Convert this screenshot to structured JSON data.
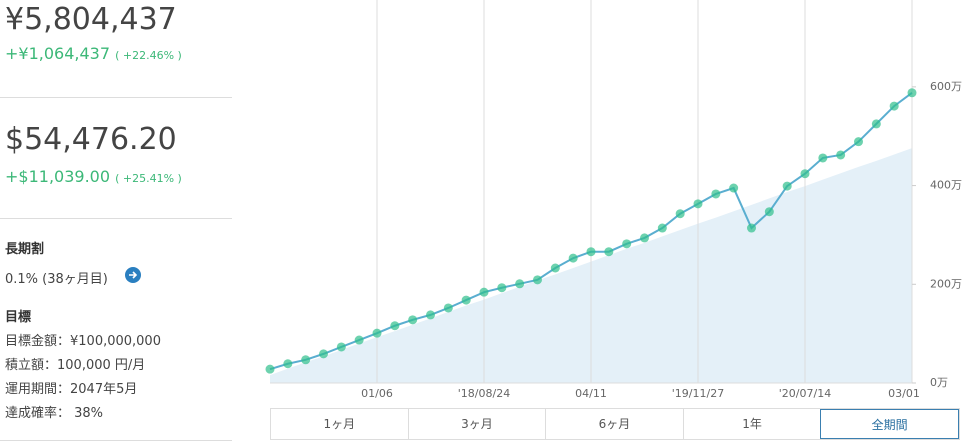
{
  "summary": {
    "jpy_value": "¥5,804,437",
    "jpy_change": "+¥1,064,437",
    "jpy_pct": "( +22.46% )",
    "usd_value": "$54,476.20",
    "usd_change": "+$11,039.00",
    "usd_pct": "( +25.41% )"
  },
  "discount": {
    "title": "長期割",
    "text": "0.1% (38ヶ月目)"
  },
  "goal": {
    "title": "目標",
    "lines": [
      "目標金額：¥100,000,000",
      "積立額：100,000 円/月",
      "運用期間：2047年5月",
      "達成確率： 38%"
    ]
  },
  "tabs": {
    "items": [
      "1ヶ月",
      "3ヶ月",
      "6ヶ月",
      "1年",
      "全期間"
    ],
    "selected": 4
  },
  "chart_data": {
    "type": "line",
    "categories": [
      null,
      null,
      null,
      null,
      null,
      null,
      "01/06",
      null,
      null,
      null,
      null,
      null,
      "'18/08/24",
      null,
      null,
      null,
      null,
      null,
      "04/11",
      null,
      null,
      null,
      null,
      null,
      "'19/11/27",
      null,
      null,
      null,
      null,
      null,
      "'20/07/14",
      null,
      null,
      null,
      null,
      null,
      "03/01"
    ],
    "series": [
      {
        "color": "#2fbf8c",
        "values": [
          28,
          39,
          47,
          59,
          73,
          87,
          101,
          116,
          128,
          138,
          152,
          168,
          184,
          193,
          201,
          209,
          233,
          253,
          266,
          266,
          282,
          294,
          314,
          343,
          363,
          383,
          395,
          314,
          347,
          399,
          424,
          456,
          462,
          489,
          525,
          561,
          588
        ]
      },
      {
        "color": "#e4f0f8",
        "values": [
          16,
          29,
          42,
          54,
          67,
          80,
          93,
          105,
          118,
          131,
          144,
          157,
          169,
          182,
          195,
          208,
          220,
          233,
          246,
          259,
          272,
          284,
          297,
          310,
          323,
          335,
          348,
          361,
          374,
          387,
          399,
          412,
          425,
          438,
          450,
          463,
          476
        ]
      }
    ],
    "ylim": [
      0,
      776
    ],
    "yticks": [
      {
        "value": 0,
        "label": "0万"
      },
      {
        "value": 200,
        "label": "200万"
      },
      {
        "value": 400,
        "label": "400万"
      },
      {
        "value": 600,
        "label": "600万"
      }
    ]
  }
}
